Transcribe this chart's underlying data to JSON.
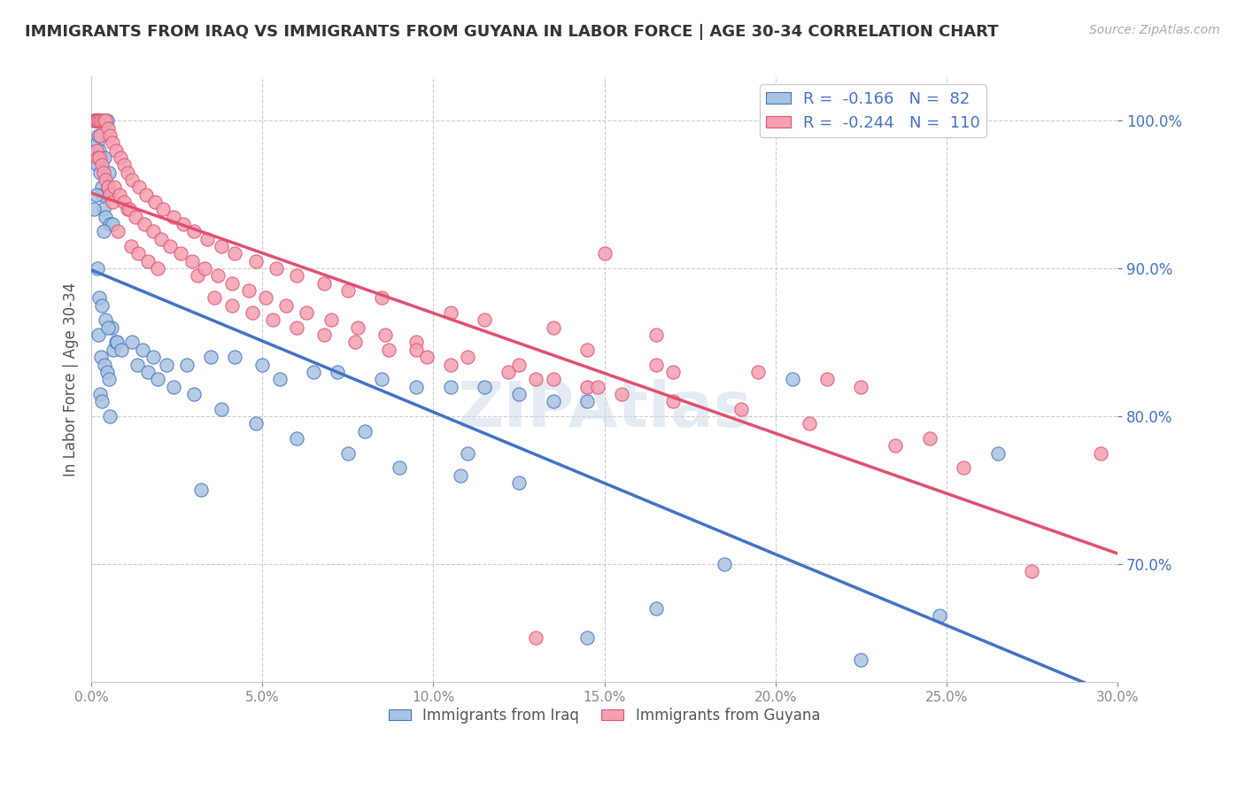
{
  "title": "IMMIGRANTS FROM IRAQ VS IMMIGRANTS FROM GUYANA IN LABOR FORCE | AGE 30-34 CORRELATION CHART",
  "source": "Source: ZipAtlas.com",
  "xlabel_vals": [
    0.0,
    5.0,
    10.0,
    15.0,
    20.0,
    25.0,
    30.0
  ],
  "ylabel_vals": [
    70.0,
    80.0,
    90.0,
    100.0
  ],
  "xmin": 0.0,
  "xmax": 30.0,
  "ymin": 62.0,
  "ymax": 103.0,
  "iraq_color": "#a8c4e0",
  "guyana_color": "#f4a0b0",
  "iraq_line_color": "#4472C4",
  "guyana_line_color": "#E05070",
  "R_iraq": -0.166,
  "N_iraq": 82,
  "R_guyana": -0.244,
  "N_guyana": 110,
  "ylabel": "In Labor Force | Age 30-34",
  "legend_iraq": "Immigrants from Iraq",
  "legend_guyana": "Immigrants from Guyana",
  "watermark": "ZIPAtlas",
  "iraq_x": [
    0.1,
    0.12,
    0.15,
    0.18,
    0.18,
    0.18,
    0.2,
    0.22,
    0.24,
    0.25,
    0.28,
    0.3,
    0.32,
    0.35,
    0.38,
    0.42,
    0.45,
    0.48,
    0.52,
    0.55,
    0.58,
    0.62,
    0.65,
    0.72,
    0.08,
    0.15,
    0.18,
    0.2,
    0.22,
    0.25,
    0.28,
    0.3,
    0.32,
    0.35,
    0.38,
    0.42,
    0.45,
    0.48,
    0.52,
    0.55,
    1.2,
    1.5,
    1.8,
    2.2,
    2.8,
    3.5,
    4.2,
    5.0,
    6.5,
    7.2,
    8.5,
    9.5,
    10.5,
    11.5,
    12.5,
    13.5,
    14.5,
    16.5,
    18.5,
    20.5,
    22.5,
    24.8,
    3.2,
    5.5,
    8.0,
    11.0,
    26.5,
    1.35,
    1.65,
    1.95,
    2.4,
    3.0,
    3.8,
    4.8,
    6.0,
    7.5,
    9.0,
    10.8,
    12.5,
    14.5,
    0.75,
    0.88
  ],
  "iraq_y": [
    100.0,
    100.0,
    100.0,
    100.0,
    98.5,
    97.0,
    99.0,
    98.0,
    100.0,
    96.5,
    97.5,
    95.5,
    95.0,
    94.0,
    97.5,
    93.5,
    100.0,
    95.5,
    96.5,
    93.0,
    86.0,
    93.0,
    84.5,
    85.0,
    94.0,
    95.0,
    90.0,
    85.5,
    88.0,
    81.5,
    84.0,
    87.5,
    81.0,
    92.5,
    83.5,
    86.5,
    83.0,
    86.0,
    82.5,
    80.0,
    85.0,
    84.5,
    84.0,
    83.5,
    83.5,
    84.0,
    84.0,
    83.5,
    83.0,
    83.0,
    82.5,
    82.0,
    82.0,
    82.0,
    81.5,
    81.0,
    81.0,
    67.0,
    70.0,
    82.5,
    63.5,
    66.5,
    75.0,
    82.5,
    79.0,
    77.5,
    77.5,
    83.5,
    83.0,
    82.5,
    82.0,
    81.5,
    80.5,
    79.5,
    78.5,
    77.5,
    76.5,
    76.0,
    75.5,
    65.0,
    85.0,
    84.5
  ],
  "guyana_x": [
    0.08,
    0.12,
    0.15,
    0.15,
    0.18,
    0.18,
    0.22,
    0.22,
    0.25,
    0.28,
    0.32,
    0.35,
    0.35,
    0.42,
    0.42,
    0.48,
    0.48,
    0.55,
    0.55,
    0.62,
    0.62,
    0.68,
    0.72,
    0.78,
    0.82,
    0.85,
    0.95,
    0.95,
    1.05,
    1.05,
    1.1,
    1.15,
    1.2,
    1.3,
    1.38,
    1.4,
    1.55,
    1.6,
    1.65,
    1.8,
    1.85,
    1.95,
    2.05,
    2.1,
    2.3,
    2.4,
    2.6,
    2.7,
    2.95,
    3.0,
    3.1,
    3.3,
    3.4,
    3.6,
    3.7,
    3.8,
    4.1,
    4.1,
    4.2,
    4.6,
    4.7,
    4.8,
    5.1,
    5.3,
    5.4,
    5.7,
    6.0,
    6.0,
    6.3,
    6.8,
    6.8,
    7.0,
    7.5,
    7.7,
    7.8,
    8.5,
    8.6,
    8.7,
    9.5,
    9.5,
    9.8,
    10.5,
    10.5,
    11.0,
    11.5,
    12.2,
    12.5,
    13.0,
    13.5,
    13.5,
    14.5,
    14.5,
    14.8,
    15.0,
    15.5,
    16.5,
    17.0,
    17.0,
    19.5,
    21.5,
    22.5,
    24.5,
    27.5,
    29.5,
    13.0,
    16.5,
    19.0,
    21.0,
    23.5,
    25.5
  ],
  "guyana_y": [
    100.0,
    100.0,
    100.0,
    98.0,
    100.0,
    97.5,
    100.0,
    97.5,
    99.0,
    100.0,
    97.0,
    100.0,
    96.5,
    100.0,
    96.0,
    99.5,
    95.5,
    99.0,
    95.0,
    98.5,
    94.5,
    95.5,
    98.0,
    92.5,
    95.0,
    97.5,
    97.0,
    94.5,
    96.5,
    94.0,
    94.0,
    91.5,
    96.0,
    93.5,
    91.0,
    95.5,
    93.0,
    95.0,
    90.5,
    92.5,
    94.5,
    90.0,
    92.0,
    94.0,
    91.5,
    93.5,
    91.0,
    93.0,
    90.5,
    92.5,
    89.5,
    90.0,
    92.0,
    88.0,
    89.5,
    91.5,
    89.0,
    87.5,
    91.0,
    88.5,
    87.0,
    90.5,
    88.0,
    86.5,
    90.0,
    87.5,
    89.5,
    86.0,
    87.0,
    89.0,
    85.5,
    86.5,
    88.5,
    85.0,
    86.0,
    88.0,
    85.5,
    84.5,
    85.0,
    84.5,
    84.0,
    87.0,
    83.5,
    84.0,
    86.5,
    83.0,
    83.5,
    82.5,
    82.5,
    86.0,
    84.5,
    82.0,
    82.0,
    91.0,
    81.5,
    83.5,
    83.0,
    81.0,
    83.0,
    82.5,
    82.0,
    78.5,
    69.5,
    77.5,
    65.0,
    85.5,
    80.5,
    79.5,
    78.0,
    76.5
  ]
}
